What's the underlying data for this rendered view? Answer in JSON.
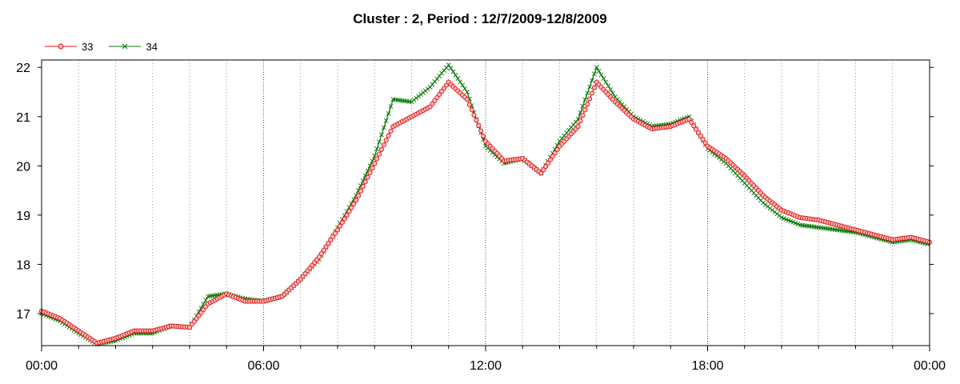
{
  "chart_data": {
    "type": "line",
    "title": "Cluster : 2, Period : 12/7/2009-12/8/2009",
    "xlabel": "",
    "ylabel": "",
    "x_tick_labels": [
      "00:00",
      "06:00",
      "12:00",
      "18:00",
      "00:00"
    ],
    "x_tick_hours": [
      0,
      6,
      12,
      18,
      24
    ],
    "xlim_hours": [
      0,
      24
    ],
    "ylim": [
      16.35,
      22.15
    ],
    "y_ticks": [
      17,
      18,
      19,
      20,
      21,
      22
    ],
    "grid": "vertical dotted",
    "legend_position": "top-left",
    "x_hours": [
      0,
      0.5,
      1.0,
      1.5,
      2.0,
      2.5,
      3.0,
      3.5,
      4.0,
      4.5,
      5.0,
      5.5,
      6.0,
      6.5,
      7.0,
      7.5,
      8.0,
      8.5,
      9.0,
      9.5,
      10.0,
      10.5,
      11.0,
      11.5,
      12.0,
      12.5,
      13.0,
      13.5,
      14.0,
      14.5,
      15.0,
      15.5,
      16.0,
      16.5,
      17.0,
      17.5,
      18.0,
      18.5,
      19.0,
      19.5,
      20.0,
      20.5,
      21.0,
      21.5,
      22.0,
      22.5,
      23.0,
      23.5,
      24.0
    ],
    "series": [
      {
        "name": "33",
        "color": "#dd1111",
        "fill": "#ffbbbb",
        "marker": "circle",
        "values": [
          17.05,
          16.9,
          16.65,
          16.4,
          16.5,
          16.65,
          16.65,
          16.75,
          16.72,
          17.2,
          17.4,
          17.25,
          17.25,
          17.35,
          17.7,
          18.15,
          18.7,
          19.3,
          20.05,
          20.8,
          21.0,
          21.2,
          21.7,
          21.35,
          20.5,
          20.1,
          20.15,
          19.85,
          20.4,
          20.8,
          21.7,
          21.3,
          20.95,
          20.75,
          20.8,
          20.95,
          20.4,
          20.15,
          19.8,
          19.4,
          19.1,
          18.95,
          18.9,
          18.8,
          18.7,
          18.6,
          18.5,
          18.55,
          18.45
        ]
      },
      {
        "name": "34",
        "color": "#007700",
        "fill": "#007700",
        "marker": "x",
        "values": [
          17.0,
          16.85,
          16.6,
          16.38,
          16.45,
          16.6,
          16.6,
          16.75,
          16.72,
          17.35,
          17.4,
          17.3,
          17.25,
          17.35,
          17.7,
          18.1,
          18.75,
          19.4,
          20.2,
          21.35,
          21.3,
          21.6,
          22.05,
          21.5,
          20.4,
          20.05,
          20.15,
          19.85,
          20.5,
          20.95,
          22.0,
          21.4,
          21.0,
          20.8,
          20.85,
          21.0,
          20.35,
          20.05,
          19.65,
          19.25,
          18.95,
          18.8,
          18.75,
          18.7,
          18.65,
          18.55,
          18.45,
          18.5,
          18.4
        ]
      }
    ]
  }
}
